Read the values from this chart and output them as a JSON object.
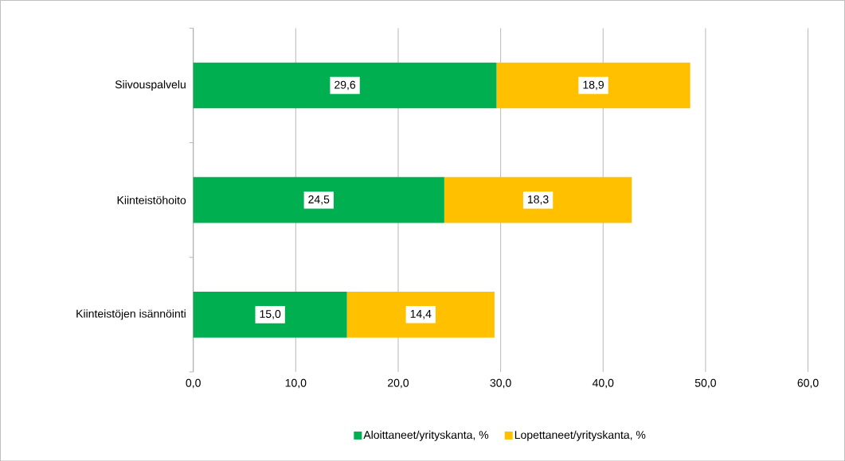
{
  "chart_data": {
    "type": "bar",
    "orientation": "horizontal",
    "stacked": true,
    "categories": [
      "Siivouspalvelu",
      "Kiinteistöhoito",
      "Kiinteistöjen isännöinti"
    ],
    "series": [
      {
        "name": "Aloittaneet/yrityskanta, %",
        "color": "#00b050",
        "values": [
          29.6,
          24.5,
          15.0
        ],
        "value_labels": [
          "29,6",
          "24,5",
          "15,0"
        ]
      },
      {
        "name": "Lopettaneet/yrityskanta, %",
        "color": "#ffc000",
        "values": [
          18.9,
          18.3,
          14.4
        ],
        "value_labels": [
          "18,9",
          "18,3",
          "14,4"
        ]
      }
    ],
    "xlim": [
      0,
      60
    ],
    "xticks": [
      {
        "value": 0,
        "label": "0,0"
      },
      {
        "value": 10,
        "label": "10,0"
      },
      {
        "value": 20,
        "label": "20,0"
      },
      {
        "value": 30,
        "label": "30,0"
      },
      {
        "value": 40,
        "label": "40,0"
      },
      {
        "value": 50,
        "label": "50,0"
      },
      {
        "value": 60,
        "label": "60,0"
      }
    ],
    "grid": "x",
    "legend": "bottom"
  }
}
